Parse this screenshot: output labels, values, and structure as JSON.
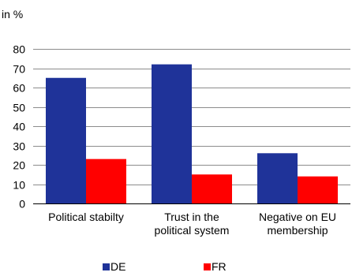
{
  "chart_data": {
    "type": "bar",
    "unit_label": "in %",
    "categories": [
      [
        "Political stabilty"
      ],
      [
        "Trust in the",
        "political system"
      ],
      [
        "Negative on EU",
        "membership"
      ]
    ],
    "series": [
      {
        "name": "DE",
        "color": "#1f3399",
        "values": [
          65,
          72,
          26
        ]
      },
      {
        "name": "FR",
        "color": "#ff0000",
        "values": [
          23,
          15,
          14
        ]
      }
    ],
    "ylim": [
      0,
      80
    ],
    "yticks": [
      0,
      10,
      20,
      30,
      40,
      50,
      60,
      70,
      80
    ],
    "grid": true,
    "legend_position": "bottom"
  }
}
